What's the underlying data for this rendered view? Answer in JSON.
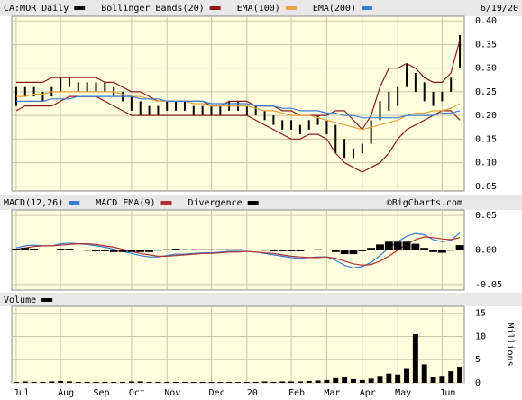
{
  "chart_data": [
    {
      "type": "hilo",
      "date": "6/19/20",
      "ylim": [
        0.04,
        0.41
      ],
      "grid": true,
      "yticks": [
        {
          "value": 0.05,
          "label": "0.05"
        },
        {
          "value": 0.1,
          "label": "0.10"
        },
        {
          "value": 0.15,
          "label": "0.15"
        },
        {
          "value": 0.2,
          "label": "0.20"
        },
        {
          "value": 0.25,
          "label": "0.25"
        },
        {
          "value": 0.3,
          "label": "0.30"
        },
        {
          "value": 0.35,
          "label": "0.35"
        },
        {
          "value": 0.4,
          "label": "0.40"
        }
      ],
      "series": [
        {
          "name": "CA:MOR Daily",
          "color": "#000000",
          "high": [
            0.26,
            0.26,
            0.26,
            0.25,
            0.26,
            0.28,
            0.28,
            0.27,
            0.27,
            0.27,
            0.27,
            0.26,
            0.25,
            0.24,
            0.23,
            0.22,
            0.22,
            0.23,
            0.23,
            0.23,
            0.22,
            0.22,
            0.22,
            0.22,
            0.23,
            0.23,
            0.22,
            0.22,
            0.21,
            0.2,
            0.19,
            0.19,
            0.18,
            0.19,
            0.2,
            0.19,
            0.18,
            0.15,
            0.13,
            0.14,
            0.19,
            0.23,
            0.25,
            0.26,
            0.31,
            0.29,
            0.27,
            0.25,
            0.25,
            0.28,
            0.37
          ],
          "low": [
            0.22,
            0.24,
            0.24,
            0.23,
            0.24,
            0.25,
            0.26,
            0.25,
            0.25,
            0.25,
            0.25,
            0.24,
            0.23,
            0.21,
            0.2,
            0.2,
            0.2,
            0.21,
            0.21,
            0.21,
            0.2,
            0.2,
            0.2,
            0.2,
            0.21,
            0.21,
            0.2,
            0.2,
            0.19,
            0.18,
            0.17,
            0.17,
            0.16,
            0.17,
            0.18,
            0.16,
            0.12,
            0.11,
            0.11,
            0.12,
            0.14,
            0.19,
            0.21,
            0.22,
            0.26,
            0.25,
            0.23,
            0.22,
            0.23,
            0.25,
            0.3
          ]
        },
        {
          "name": "Bollinger Bands(20)",
          "color": "#8b1a1a",
          "upper": [
            0.27,
            0.27,
            0.27,
            0.27,
            0.28,
            0.28,
            0.28,
            0.28,
            0.28,
            0.28,
            0.27,
            0.27,
            0.26,
            0.25,
            0.25,
            0.24,
            0.23,
            0.23,
            0.23,
            0.23,
            0.23,
            0.23,
            0.22,
            0.22,
            0.23,
            0.23,
            0.23,
            0.22,
            0.22,
            0.22,
            0.21,
            0.21,
            0.2,
            0.2,
            0.2,
            0.2,
            0.21,
            0.21,
            0.19,
            0.17,
            0.2,
            0.26,
            0.3,
            0.3,
            0.31,
            0.3,
            0.28,
            0.27,
            0.27,
            0.29,
            0.36
          ],
          "lower": [
            0.21,
            0.22,
            0.22,
            0.22,
            0.22,
            0.23,
            0.24,
            0.24,
            0.24,
            0.24,
            0.23,
            0.22,
            0.21,
            0.2,
            0.2,
            0.2,
            0.2,
            0.2,
            0.2,
            0.2,
            0.2,
            0.2,
            0.2,
            0.2,
            0.2,
            0.2,
            0.2,
            0.19,
            0.18,
            0.17,
            0.16,
            0.15,
            0.15,
            0.16,
            0.16,
            0.15,
            0.12,
            0.1,
            0.09,
            0.08,
            0.09,
            0.1,
            0.12,
            0.15,
            0.17,
            0.18,
            0.19,
            0.2,
            0.21,
            0.21,
            0.19
          ]
        },
        {
          "name": "EMA(100)",
          "color": "#e8a33c",
          "values": [
            0.24,
            0.24,
            0.245,
            0.245,
            0.25,
            0.25,
            0.25,
            0.25,
            0.25,
            0.25,
            0.25,
            0.25,
            0.245,
            0.24,
            0.24,
            0.235,
            0.23,
            0.23,
            0.23,
            0.23,
            0.225,
            0.225,
            0.22,
            0.22,
            0.22,
            0.22,
            0.22,
            0.215,
            0.21,
            0.21,
            0.205,
            0.2,
            0.2,
            0.2,
            0.195,
            0.19,
            0.185,
            0.18,
            0.175,
            0.17,
            0.175,
            0.18,
            0.185,
            0.19,
            0.2,
            0.205,
            0.205,
            0.21,
            0.21,
            0.215,
            0.225
          ]
        },
        {
          "name": "EMA(200)",
          "color": "#3a7bd5",
          "values": [
            0.23,
            0.23,
            0.23,
            0.23,
            0.235,
            0.235,
            0.235,
            0.24,
            0.24,
            0.24,
            0.24,
            0.24,
            0.24,
            0.24,
            0.235,
            0.235,
            0.235,
            0.23,
            0.23,
            0.23,
            0.23,
            0.23,
            0.225,
            0.225,
            0.225,
            0.225,
            0.225,
            0.22,
            0.22,
            0.22,
            0.215,
            0.215,
            0.21,
            0.21,
            0.21,
            0.205,
            0.205,
            0.2,
            0.2,
            0.195,
            0.195,
            0.195,
            0.195,
            0.195,
            0.2,
            0.2,
            0.2,
            0.2,
            0.205,
            0.205,
            0.21
          ]
        }
      ]
    },
    {
      "type": "macd",
      "source": "©BigCharts.com",
      "ylim": [
        -0.058,
        0.058
      ],
      "grid": true,
      "yticks": [
        {
          "value": -0.05,
          "label": "-0.05"
        },
        {
          "value": 0,
          "label": "0.00"
        },
        {
          "value": 0.05,
          "label": "0.05"
        }
      ],
      "series": [
        {
          "name": "MACD(12,26)",
          "color": "#3a7bd5",
          "values": [
            0.003,
            0.006,
            0.007,
            0.006,
            0.006,
            0.009,
            0.01,
            0.009,
            0.008,
            0.006,
            0.004,
            0.001,
            -0.002,
            -0.005,
            -0.008,
            -0.01,
            -0.01,
            -0.008,
            -0.006,
            -0.006,
            -0.005,
            -0.004,
            -0.004,
            -0.003,
            -0.002,
            -0.002,
            -0.002,
            -0.003,
            -0.005,
            -0.007,
            -0.009,
            -0.011,
            -0.012,
            -0.011,
            -0.01,
            -0.01,
            -0.015,
            -0.022,
            -0.026,
            -0.024,
            -0.018,
            -0.008,
            0.003,
            0.012,
            0.02,
            0.024,
            0.022,
            0.015,
            0.012,
            0.014,
            0.025
          ]
        },
        {
          "name": "MACD EMA(9)",
          "color": "#b03030",
          "values": [
            0.001,
            0.003,
            0.005,
            0.006,
            0.006,
            0.007,
            0.008,
            0.009,
            0.009,
            0.008,
            0.006,
            0.004,
            0.001,
            -0.002,
            -0.005,
            -0.007,
            -0.009,
            -0.009,
            -0.008,
            -0.007,
            -0.006,
            -0.005,
            -0.005,
            -0.004,
            -0.003,
            -0.003,
            -0.002,
            -0.003,
            -0.004,
            -0.005,
            -0.007,
            -0.009,
            -0.01,
            -0.011,
            -0.011,
            -0.01,
            -0.012,
            -0.016,
            -0.02,
            -0.022,
            -0.021,
            -0.016,
            -0.009,
            0.0,
            0.008,
            0.015,
            0.019,
            0.018,
            0.016,
            0.015,
            0.018
          ]
        },
        {
          "name": "Divergence",
          "color": "#000000",
          "type": "bar",
          "values": [
            0.002,
            0.003,
            0.002,
            0.0,
            0.0,
            0.002,
            0.002,
            0.0,
            -0.001,
            -0.002,
            -0.002,
            -0.003,
            -0.003,
            -0.003,
            -0.003,
            -0.003,
            -0.001,
            0.001,
            0.002,
            0.001,
            0.001,
            0.001,
            0.001,
            0.001,
            0.001,
            0.001,
            0.0,
            0.0,
            -0.001,
            -0.002,
            -0.002,
            -0.002,
            -0.002,
            0.0,
            0.001,
            0.0,
            -0.003,
            -0.006,
            -0.006,
            -0.002,
            0.003,
            0.008,
            0.012,
            0.012,
            0.012,
            0.009,
            0.003,
            -0.003,
            -0.004,
            -0.001,
            0.007
          ]
        }
      ]
    },
    {
      "type": "bar",
      "title": "Volume",
      "ylabel": "Millions",
      "color": "#000000",
      "ylim": [
        0,
        16.5
      ],
      "grid": true,
      "yticks": [
        0,
        5,
        10,
        15
      ],
      "categories": [
        "Jul",
        null,
        null,
        null,
        null,
        "Aug",
        null,
        null,
        null,
        "Sep",
        null,
        null,
        null,
        "Oct",
        null,
        null,
        null,
        "Nov",
        null,
        null,
        null,
        null,
        "Dec",
        null,
        null,
        null,
        "20",
        null,
        null,
        null,
        null,
        "Feb",
        null,
        null,
        null,
        "Mar",
        null,
        null,
        null,
        "Apr",
        null,
        null,
        null,
        "May",
        null,
        null,
        null,
        null,
        "Jun",
        null,
        null
      ],
      "values": [
        0.2,
        0.3,
        0.2,
        0.2,
        0.3,
        0.4,
        0.3,
        0.2,
        0.2,
        0.2,
        0.2,
        0.2,
        0.2,
        0.3,
        0.3,
        0.2,
        0.2,
        0.2,
        0.2,
        0.2,
        0.2,
        0.2,
        0.2,
        0.2,
        0.2,
        0.2,
        0.2,
        0.2,
        0.3,
        0.2,
        0.3,
        0.3,
        0.3,
        0.4,
        0.5,
        0.6,
        1.0,
        1.2,
        0.8,
        0.6,
        0.9,
        1.5,
        2.0,
        1.8,
        3.0,
        10.5,
        4.0,
        1.2,
        1.5,
        2.5,
        3.5
      ]
    }
  ]
}
